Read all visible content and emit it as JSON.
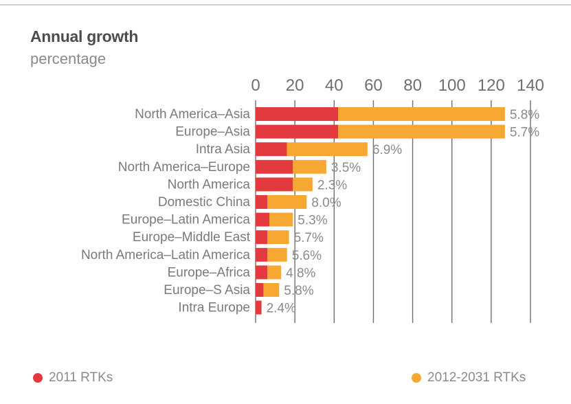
{
  "chart_data": {
    "type": "bar",
    "stacked": true,
    "orientation": "horizontal",
    "title": "Annual growth",
    "subtitle": "percentage",
    "xlim": [
      0,
      140
    ],
    "xticks": [
      "0",
      "20",
      "40",
      "60",
      "80",
      "100",
      "120",
      "140"
    ],
    "categories": [
      "North America–Asia",
      "Europe–Asia",
      "Intra Asia",
      "North America–Europe",
      "North America",
      "Domestic China",
      "Europe–Latin America",
      "Europe–Middle East",
      "North America–Latin America",
      "Europe–Africa",
      "Europe–S Asia",
      "Intra Europe"
    ],
    "series": [
      {
        "name": "2011 RTKs",
        "color": "#e23a3f",
        "values": [
          42,
          42,
          16,
          19,
          19,
          6,
          7,
          6,
          6,
          6,
          4,
          3
        ]
      },
      {
        "name": "2012-2031 RTKs",
        "color": "#f6a833",
        "values": [
          85,
          85,
          41,
          17,
          10,
          20,
          12,
          11,
          10,
          7,
          8,
          0
        ]
      }
    ],
    "data_labels": [
      "5.8%",
      "5.7%",
      "6.9%",
      "3.5%",
      "2.3%",
      "8.0%",
      "5.3%",
      "5.7%",
      "5.6%",
      "4.8%",
      "5.8%",
      "2.4%"
    ],
    "legend_position": "bottom",
    "grid": true
  }
}
